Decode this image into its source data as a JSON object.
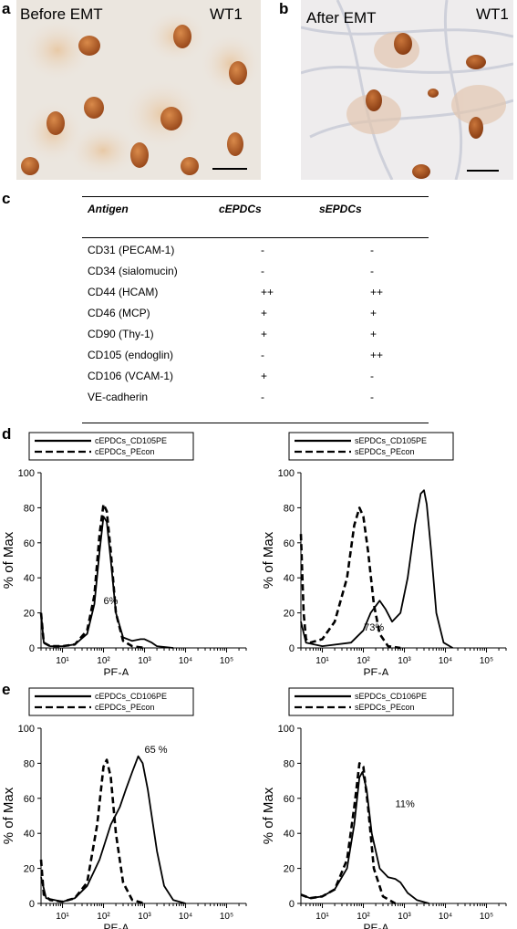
{
  "panels": {
    "a": {
      "label": "a",
      "title": "Before EMT",
      "stain": "WT1"
    },
    "b": {
      "label": "b",
      "title": "After EMT",
      "stain": "WT1"
    },
    "c": {
      "label": "c"
    },
    "d": {
      "label": "d"
    },
    "e": {
      "label": "e"
    }
  },
  "table": {
    "headers": [
      "Antigen",
      "cEPDCs",
      "sEPDCs"
    ],
    "rows": [
      {
        "antigen": "CD31 (PECAM-1)",
        "c": "-",
        "s": "-"
      },
      {
        "antigen": "CD34 (sialomucin)",
        "c": "-",
        "s": "-"
      },
      {
        "antigen": "CD44 (HCAM)",
        "c": "++",
        "s": "++"
      },
      {
        "antigen": "CD46 (MCP)",
        "c": "+",
        "s": "+"
      },
      {
        "antigen": "CD90 (Thy-1)",
        "c": "+",
        "s": "+"
      },
      {
        "antigen": "CD105 (endoglin)",
        "c": "-",
        "s": "++"
      },
      {
        "antigen": "CD106 (VCAM-1)",
        "c": "+",
        "s": "-"
      },
      {
        "antigen": "VE-cadherin",
        "c": "-",
        "s": "-"
      }
    ]
  },
  "chart_data": [
    {
      "type": "line",
      "panel": "d",
      "xlabel": "PE-A",
      "ylabel": "% of Max",
      "x_scale": "log",
      "xlim": [
        3,
        300000
      ],
      "ylim": [
        0,
        100
      ],
      "yticks": [
        0,
        20,
        40,
        60,
        80,
        100
      ],
      "xtick_labels": [
        "10¹",
        "10²",
        "10³",
        "10⁴",
        "10⁵"
      ],
      "annotation": "6%",
      "series": [
        {
          "name": "cEPDCs_CD105PE",
          "style": "solid",
          "points": [
            [
              3,
              20
            ],
            [
              3.5,
              3
            ],
            [
              5,
              1
            ],
            [
              10,
              1
            ],
            [
              20,
              2
            ],
            [
              40,
              8
            ],
            [
              60,
              25
            ],
            [
              80,
              55
            ],
            [
              100,
              75
            ],
            [
              120,
              72
            ],
            [
              150,
              50
            ],
            [
              200,
              20
            ],
            [
              300,
              6
            ],
            [
              500,
              4
            ],
            [
              800,
              5
            ],
            [
              1000,
              5
            ],
            [
              1500,
              3
            ],
            [
              2000,
              1
            ],
            [
              5000,
              0
            ]
          ]
        },
        {
          "name": "cEPDCs_PEcon",
          "style": "dashed",
          "points": [
            [
              3,
              20
            ],
            [
              3.5,
              3
            ],
            [
              5,
              1
            ],
            [
              10,
              1
            ],
            [
              20,
              2
            ],
            [
              40,
              10
            ],
            [
              60,
              30
            ],
            [
              80,
              65
            ],
            [
              100,
              82
            ],
            [
              120,
              78
            ],
            [
              150,
              55
            ],
            [
              200,
              20
            ],
            [
              300,
              4
            ],
            [
              500,
              1
            ],
            [
              1000,
              0
            ]
          ]
        }
      ]
    },
    {
      "type": "line",
      "panel": "d",
      "xlabel": "PE-A",
      "ylabel": "% of Max",
      "x_scale": "log",
      "xlim": [
        3,
        300000
      ],
      "ylim": [
        0,
        100
      ],
      "yticks": [
        0,
        20,
        40,
        60,
        80,
        100
      ],
      "xtick_labels": [
        "10¹",
        "10²",
        "10³",
        "10⁴",
        "10⁵"
      ],
      "annotation": "73%",
      "series": [
        {
          "name": "sEPDCs_CD105PE",
          "style": "solid",
          "points": [
            [
              3,
              15
            ],
            [
              4,
              3
            ],
            [
              10,
              1
            ],
            [
              50,
              3
            ],
            [
              100,
              10
            ],
            [
              150,
              20
            ],
            [
              250,
              27
            ],
            [
              350,
              22
            ],
            [
              500,
              15
            ],
            [
              800,
              20
            ],
            [
              1200,
              40
            ],
            [
              1800,
              70
            ],
            [
              2500,
              88
            ],
            [
              3000,
              90
            ],
            [
              3500,
              82
            ],
            [
              4500,
              55
            ],
            [
              6000,
              20
            ],
            [
              9000,
              3
            ],
            [
              15000,
              0
            ]
          ]
        },
        {
          "name": "sEPDCs_PEcon",
          "style": "dashed",
          "points": [
            [
              3,
              65
            ],
            [
              3.5,
              20
            ],
            [
              4,
              5
            ],
            [
              5,
              3
            ],
            [
              10,
              5
            ],
            [
              20,
              15
            ],
            [
              40,
              40
            ],
            [
              60,
              70
            ],
            [
              80,
              80
            ],
            [
              100,
              75
            ],
            [
              130,
              55
            ],
            [
              180,
              25
            ],
            [
              250,
              8
            ],
            [
              400,
              1
            ],
            [
              800,
              0
            ]
          ]
        }
      ]
    },
    {
      "type": "line",
      "panel": "e",
      "xlabel": "PE-A",
      "ylabel": "% of Max",
      "x_scale": "log",
      "xlim": [
        3,
        300000
      ],
      "ylim": [
        0,
        100
      ],
      "yticks": [
        0,
        20,
        40,
        60,
        80,
        100
      ],
      "xtick_labels": [
        "10¹",
        "10²",
        "10³",
        "10⁴",
        "10⁵"
      ],
      "annotation": "65 %",
      "series": [
        {
          "name": "cEPDCs_CD106PE",
          "style": "solid",
          "points": [
            [
              3,
              15
            ],
            [
              4,
              3
            ],
            [
              10,
              1
            ],
            [
              20,
              3
            ],
            [
              40,
              10
            ],
            [
              80,
              25
            ],
            [
              150,
              45
            ],
            [
              250,
              55
            ],
            [
              350,
              65
            ],
            [
              500,
              75
            ],
            [
              700,
              84
            ],
            [
              900,
              80
            ],
            [
              1200,
              65
            ],
            [
              2000,
              30
            ],
            [
              3000,
              10
            ],
            [
              5000,
              2
            ],
            [
              10000,
              0
            ]
          ]
        },
        {
          "name": "cEPDCs_PEcon",
          "style": "dashed",
          "points": [
            [
              3,
              25
            ],
            [
              3.5,
              5
            ],
            [
              5,
              2
            ],
            [
              10,
              1
            ],
            [
              20,
              3
            ],
            [
              40,
              12
            ],
            [
              70,
              45
            ],
            [
              100,
              78
            ],
            [
              120,
              82
            ],
            [
              150,
              72
            ],
            [
              200,
              40
            ],
            [
              300,
              12
            ],
            [
              500,
              2
            ],
            [
              1000,
              0
            ]
          ]
        }
      ]
    },
    {
      "type": "line",
      "panel": "e",
      "xlabel": "PE-A",
      "ylabel": "% of Max",
      "x_scale": "log",
      "xlim": [
        3,
        300000
      ],
      "ylim": [
        0,
        100
      ],
      "yticks": [
        0,
        20,
        40,
        60,
        80,
        100
      ],
      "xtick_labels": [
        "10¹",
        "10²",
        "10³",
        "10⁴",
        "10⁵"
      ],
      "annotation": "11%",
      "series": [
        {
          "name": "sEPDCs_CD106PE",
          "style": "solid",
          "points": [
            [
              3,
              5
            ],
            [
              5,
              3
            ],
            [
              10,
              4
            ],
            [
              20,
              8
            ],
            [
              40,
              20
            ],
            [
              60,
              45
            ],
            [
              80,
              72
            ],
            [
              95,
              75
            ],
            [
              120,
              65
            ],
            [
              160,
              40
            ],
            [
              250,
              20
            ],
            [
              400,
              15
            ],
            [
              600,
              14
            ],
            [
              800,
              12
            ],
            [
              1200,
              6
            ],
            [
              2000,
              2
            ],
            [
              4000,
              0
            ]
          ]
        },
        {
          "name": "sEPDCs_PEcon",
          "style": "dashed",
          "points": [
            [
              3,
              5
            ],
            [
              5,
              3
            ],
            [
              10,
              4
            ],
            [
              20,
              8
            ],
            [
              40,
              25
            ],
            [
              60,
              55
            ],
            [
              80,
              80
            ],
            [
              100,
              78
            ],
            [
              130,
              55
            ],
            [
              180,
              20
            ],
            [
              300,
              4
            ],
            [
              600,
              0
            ]
          ]
        }
      ]
    }
  ]
}
